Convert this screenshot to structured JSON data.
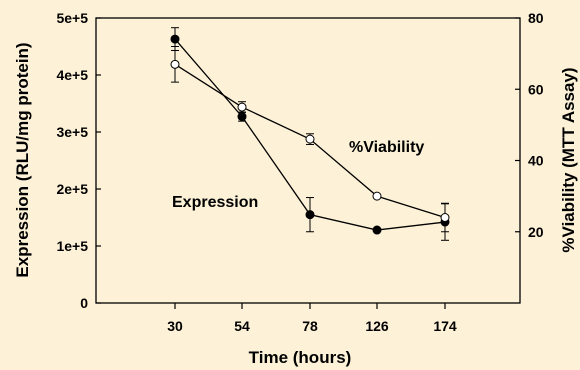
{
  "chart_data": {
    "type": "line",
    "title": "",
    "xlabel": "Time (hours)",
    "ylabel_left": "Expression (RLU/mg protein)",
    "ylabel_right": "%Viability (MTT Assay)",
    "categories": [
      "30",
      "54",
      "78",
      "126",
      "174"
    ],
    "y_left": {
      "ticks": [
        "0",
        "1e+5",
        "2e+5",
        "3e+5",
        "4e+5",
        "5e+5"
      ],
      "values": [
        0,
        100000,
        200000,
        300000,
        400000,
        500000
      ],
      "lim": [
        0,
        500000
      ]
    },
    "y_right": {
      "ticks": [
        "20",
        "40",
        "60",
        "80"
      ],
      "values": [
        20,
        40,
        60,
        80
      ],
      "lim": [
        0,
        80
      ]
    },
    "grid": false,
    "series": [
      {
        "name": "Expression",
        "axis": "left",
        "marker": "filled-circle",
        "values": [
          463000,
          327000,
          155000,
          128000,
          142000
        ],
        "errors": [
          20000,
          8000,
          30000,
          0,
          32000
        ]
      },
      {
        "name": "%Viability",
        "axis": "right",
        "marker": "open-circle",
        "values": [
          67,
          55,
          46,
          30,
          24
        ],
        "errors": [
          5,
          1.5,
          1.5,
          0,
          4
        ]
      }
    ],
    "colors": {
      "background": "#fdf2d7",
      "line": "#000000",
      "open_marker_fill": "#ffffff"
    }
  }
}
